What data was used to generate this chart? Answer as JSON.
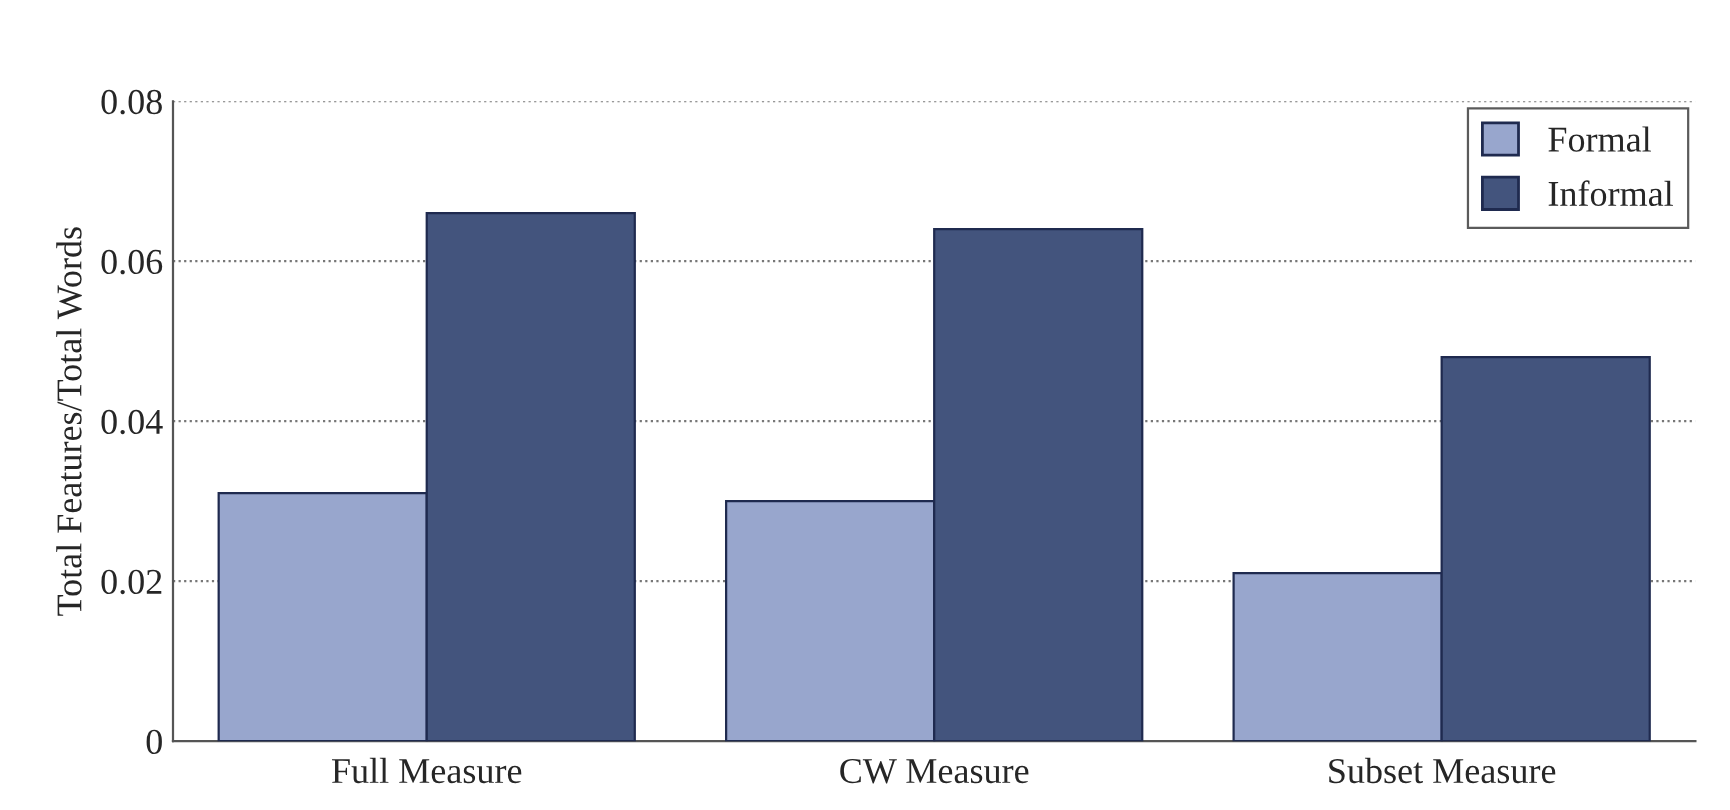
{
  "chart_data": {
    "type": "bar",
    "ylabel": "Total Features/Total Words",
    "categories": [
      "Full Measure",
      "CW Measure",
      "Subset Measure"
    ],
    "series": [
      {
        "name": "Formal",
        "color": "#98a6cd",
        "values": [
          0.031,
          0.03,
          0.021
        ]
      },
      {
        "name": "Informal",
        "color": "#43547d",
        "values": [
          0.066,
          0.064,
          0.048
        ]
      }
    ],
    "ylim": [
      0,
      0.08
    ],
    "yticks": [
      0,
      0.02,
      0.04,
      0.06,
      0.08
    ],
    "grid": "y",
    "legend": "top right"
  }
}
